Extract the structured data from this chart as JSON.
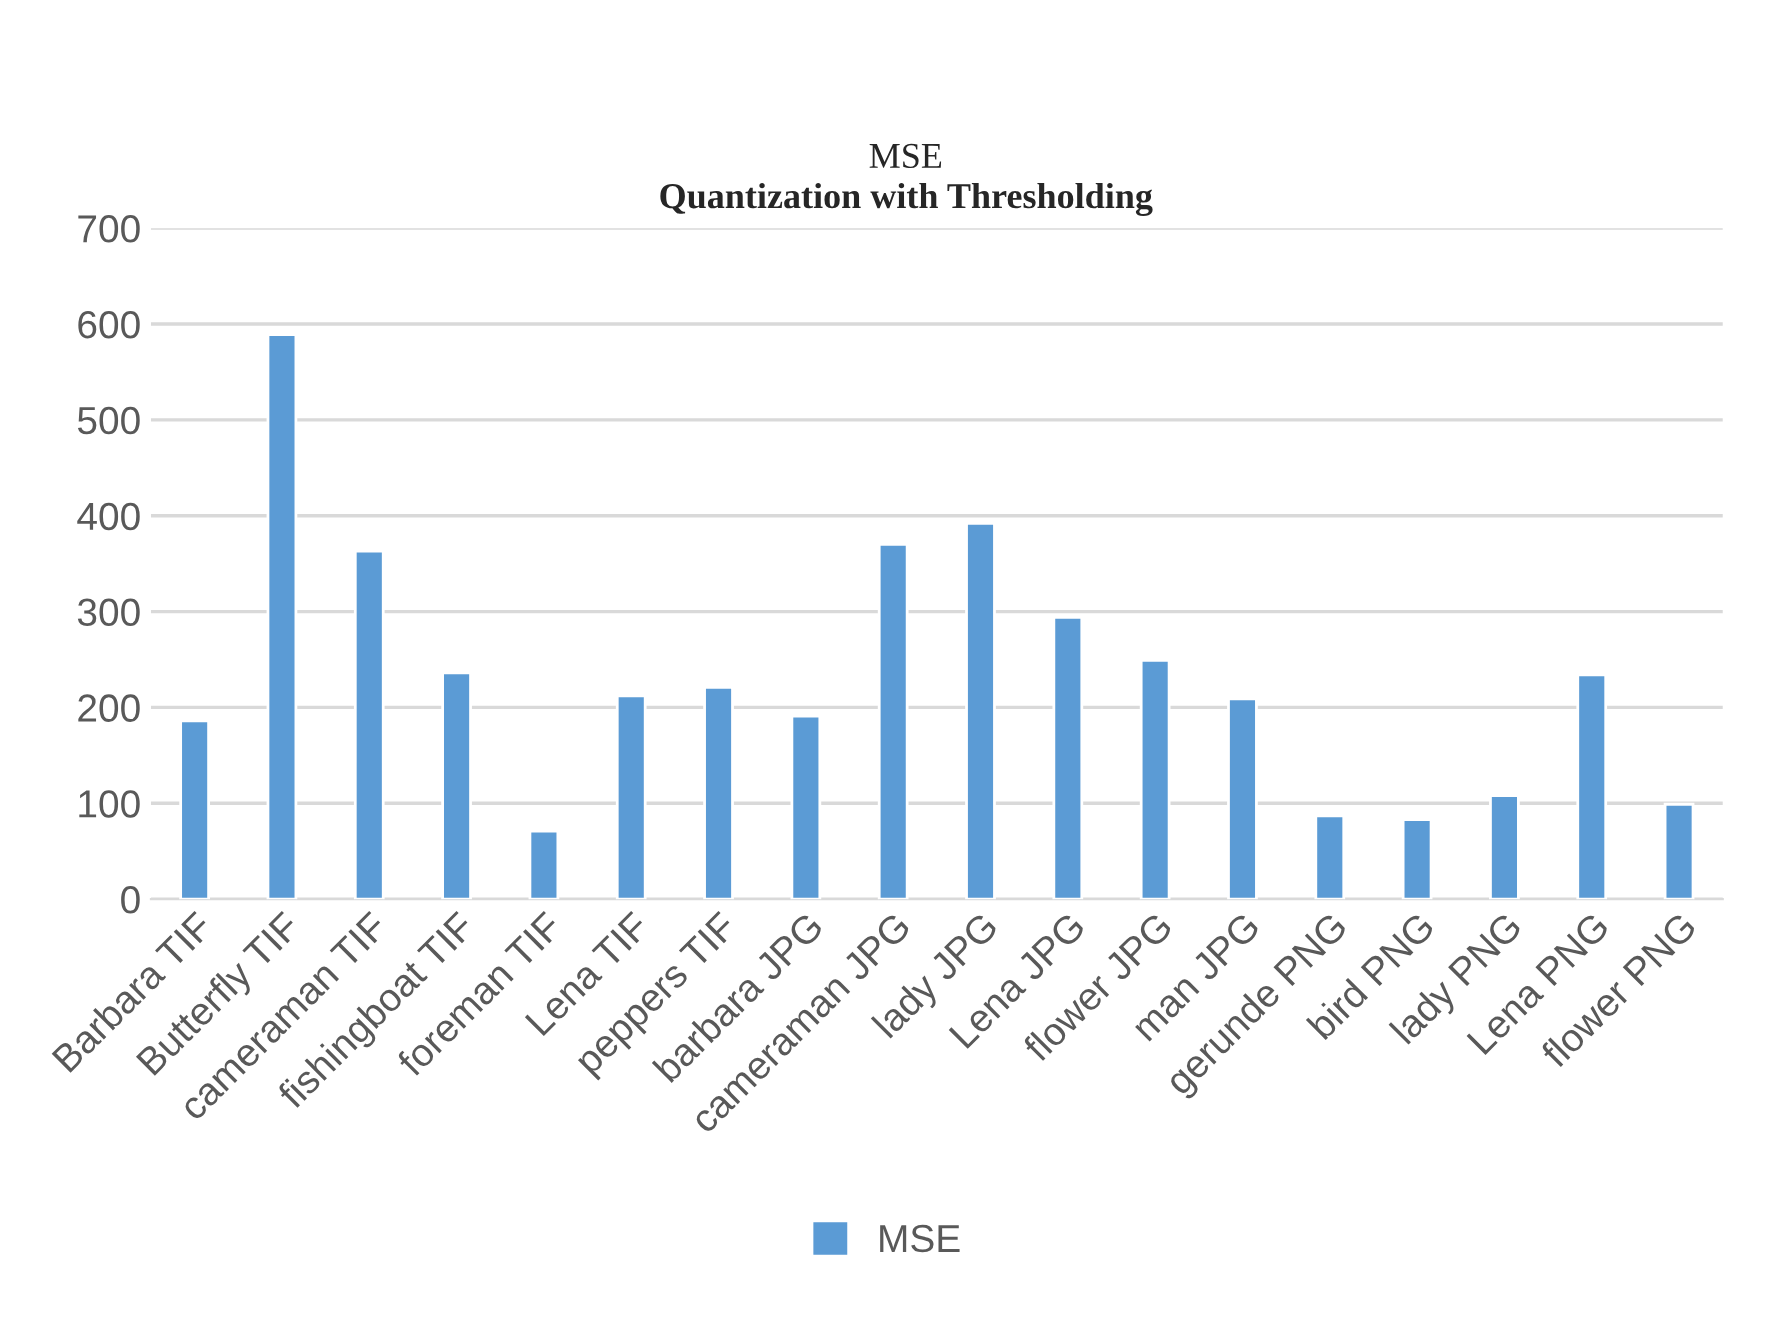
{
  "chart_data": {
    "type": "bar",
    "title": "MSE",
    "subtitle": "Quantization with Thresholding",
    "categories": [
      "Barbara TIF",
      "Butterfly TIF",
      "cameraman TIF",
      "fishingboat TIF",
      "foreman TIF",
      "Lena TIF",
      "peppers TIF",
      "barbara JPG",
      "cameraman JPG",
      "lady JPG",
      "Lena JPG",
      "flower JPG",
      "man JPG",
      "gerunde PNG",
      "bird PNG",
      "lady PNG",
      "Lena PNG",
      "flower PNG"
    ],
    "series": [
      {
        "name": "MSE",
        "color": "#5b9bd5",
        "values": [
          186,
          589,
          363,
          236,
          71,
          212,
          221,
          191,
          370,
          392,
          294,
          249,
          209,
          87,
          83,
          108,
          234,
          99
        ]
      }
    ],
    "ylim": [
      0,
      700
    ],
    "yticks": [
      0,
      100,
      200,
      300,
      400,
      500,
      600,
      700
    ],
    "grid": "y",
    "legend": "bottom"
  }
}
